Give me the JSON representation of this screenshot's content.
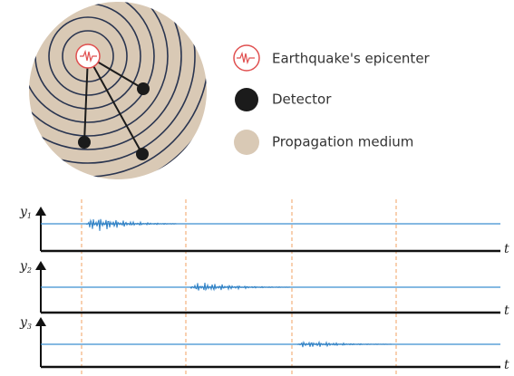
{
  "legend": [
    {
      "label": "Earthquake's epicenter"
    },
    {
      "label": "Detector"
    },
    {
      "label": "Propagation medium"
    }
  ],
  "plots": [
    {
      "y_label": "y",
      "subscript": "1",
      "x_label": "t"
    },
    {
      "y_label": "y",
      "subscript": "2",
      "x_label": "t"
    },
    {
      "y_label": "y",
      "subscript": "3",
      "x_label": "t"
    }
  ]
}
